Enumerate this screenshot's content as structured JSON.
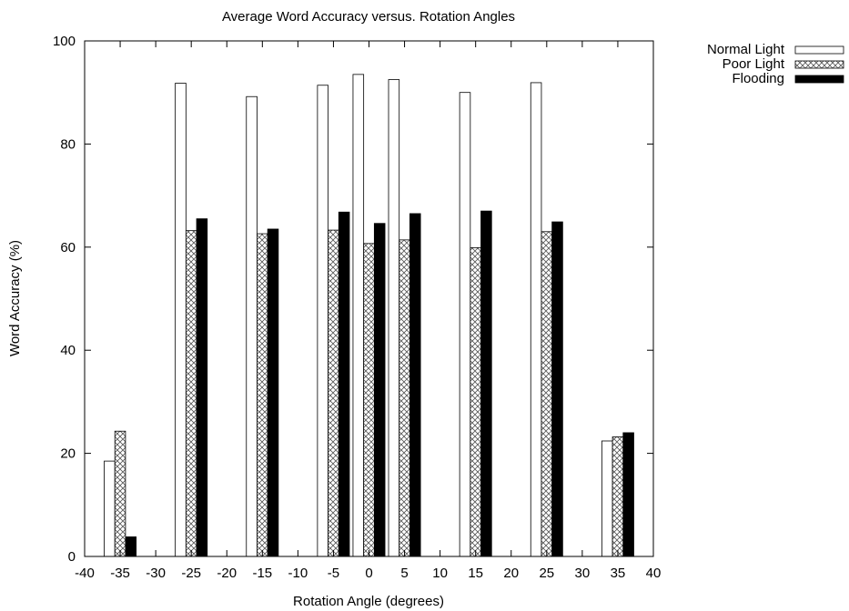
{
  "chart_data": {
    "type": "bar",
    "title": "Average Word Accuracy versus. Rotation Angles",
    "xlabel": "Rotation Angle (degrees)",
    "ylabel": "Word Accuracy (%)",
    "xlim": [
      -40,
      40
    ],
    "ylim": [
      0,
      100
    ],
    "xticks": [
      -40,
      -35,
      -30,
      -25,
      -20,
      -15,
      -10,
      -5,
      0,
      5,
      10,
      15,
      20,
      25,
      30,
      35,
      40
    ],
    "yticks": [
      0,
      20,
      40,
      60,
      80,
      100
    ],
    "grid": false,
    "legend": "top-right",
    "series": [
      {
        "name": "Normal Light",
        "style": "white",
        "points": [
          [
            -35,
            18.5
          ],
          [
            -25,
            91.8
          ],
          [
            -15,
            89.2
          ],
          [
            -5,
            91.4
          ],
          [
            0,
            93.5
          ],
          [
            5,
            92.5
          ],
          [
            15,
            90.0
          ],
          [
            25,
            91.9
          ],
          [
            35,
            22.4
          ]
        ]
      },
      {
        "name": "Poor Light",
        "style": "hatched",
        "points": [
          [
            -35,
            24.3
          ],
          [
            -25,
            63.2
          ],
          [
            -15,
            62.6
          ],
          [
            -5,
            63.3
          ],
          [
            0,
            60.7
          ],
          [
            5,
            61.4
          ],
          [
            15,
            59.9
          ],
          [
            25,
            63.0
          ],
          [
            35,
            23.2
          ]
        ]
      },
      {
        "name": "Flooding",
        "style": "black",
        "points": [
          [
            -35,
            3.8
          ],
          [
            -25,
            65.5
          ],
          [
            -15,
            63.5
          ],
          [
            -5,
            66.8
          ],
          [
            0,
            64.6
          ],
          [
            5,
            66.5
          ],
          [
            15,
            67.0
          ],
          [
            25,
            64.9
          ],
          [
            35,
            24.0
          ]
        ]
      }
    ]
  }
}
